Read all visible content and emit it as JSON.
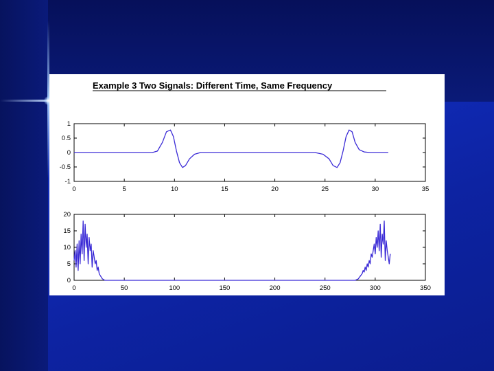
{
  "figure": {
    "title": "Example 3 Two Signals:  Different Time, Same Frequency"
  },
  "colors": {
    "background": "#0b1f86",
    "line": "#3a2ad6",
    "figure_bg": "#ffffff"
  },
  "chart_data": [
    {
      "type": "line",
      "title": "",
      "xlabel": "",
      "ylabel": "",
      "xlim": [
        0,
        35
      ],
      "ylim": [
        -1,
        1
      ],
      "grid": false,
      "xticks": [
        "0",
        "5",
        "10",
        "15",
        "20",
        "25",
        "30",
        "35"
      ],
      "yticks": [
        "1",
        "0.5",
        "0",
        "-0.5",
        "-1"
      ],
      "series": [
        {
          "x": [
            0,
            7.8,
            8.3,
            8.8,
            9.2,
            9.6,
            9.9,
            10.2,
            10.5,
            10.8,
            11.1,
            11.5,
            12.0,
            12.6,
            24.0,
            24.8,
            25.4,
            25.8,
            26.2,
            26.5,
            26.8,
            27.1,
            27.4,
            27.7,
            28.0,
            28.4,
            28.9,
            29.5,
            31.3
          ],
          "y": [
            0,
            0,
            0.05,
            0.35,
            0.72,
            0.78,
            0.55,
            0.05,
            -0.35,
            -0.52,
            -0.45,
            -0.22,
            -0.06,
            0,
            0,
            -0.06,
            -0.22,
            -0.45,
            -0.52,
            -0.35,
            0.05,
            0.55,
            0.78,
            0.72,
            0.35,
            0.1,
            0.02,
            0,
            0
          ]
        }
      ]
    },
    {
      "type": "line",
      "title": "",
      "xlabel": "",
      "ylabel": "",
      "xlim": [
        0,
        350
      ],
      "ylim": [
        0,
        20
      ],
      "grid": false,
      "xticks": [
        "0",
        "50",
        "100",
        "150",
        "200",
        "250",
        "300",
        "350"
      ],
      "yticks": [
        "20",
        "15",
        "10",
        "5",
        "0"
      ],
      "series": [
        {
          "x": [
            0,
            1,
            2,
            3,
            4,
            5,
            6,
            7,
            8,
            9,
            10,
            11,
            12,
            13,
            14,
            15,
            16,
            17,
            18,
            19,
            20,
            21,
            22,
            23,
            24,
            25,
            26,
            27,
            28,
            29,
            30,
            31,
            40,
            280,
            283,
            285,
            287,
            288,
            289,
            290,
            291,
            292,
            293,
            294,
            295,
            296,
            297,
            298,
            299,
            300,
            301,
            302,
            303,
            304,
            305,
            306,
            307,
            308,
            309,
            310,
            311,
            312,
            313,
            314,
            315
          ],
          "y": [
            6,
            9,
            4,
            11,
            3,
            12,
            5,
            14,
            8,
            18,
            6,
            17,
            10,
            14,
            5,
            13,
            9,
            11,
            4,
            9,
            7,
            5,
            6,
            3,
            4,
            2,
            1.5,
            1,
            0.5,
            0.3,
            0.1,
            0,
            0,
            0,
            0.4,
            1.2,
            2,
            3,
            2.5,
            4,
            3,
            5,
            4,
            6,
            5,
            8,
            7,
            9,
            11,
            8,
            13,
            10,
            15,
            9,
            17,
            7,
            14,
            11,
            18,
            6,
            12,
            9,
            7,
            5,
            8
          ]
        }
      ]
    }
  ]
}
